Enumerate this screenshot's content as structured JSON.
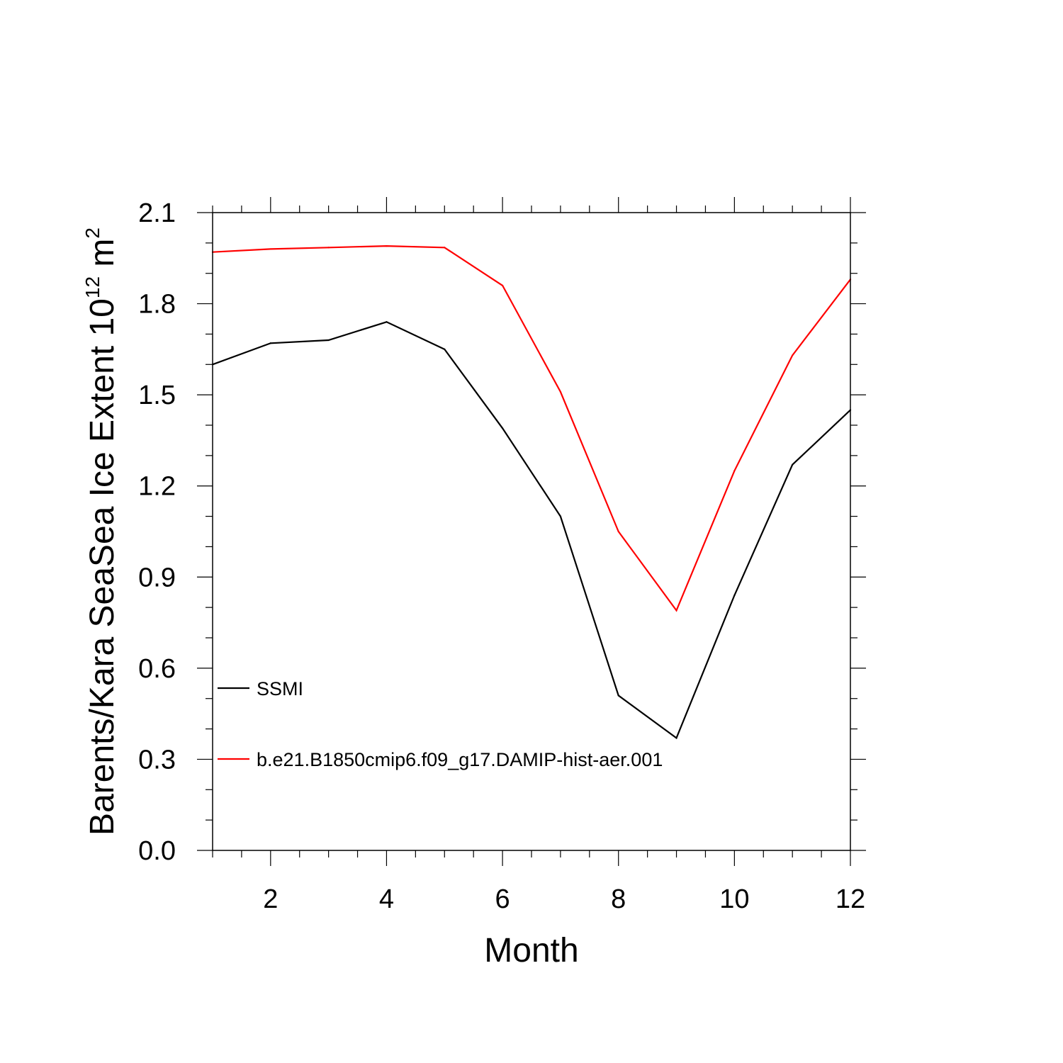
{
  "chart_data": {
    "type": "line",
    "title": "",
    "xlabel": "Month",
    "ylabel_main": "Barents/Kara SeaSea Ice Extent 10",
    "ylabel_exponent": "12",
    "ylabel_unit": " m",
    "ylabel_unit_exponent": "2",
    "xlim": [
      1,
      12
    ],
    "ylim": [
      0.0,
      2.1
    ],
    "x_ticks": [
      2,
      4,
      6,
      8,
      10,
      12
    ],
    "x_tick_labels": [
      "2",
      "4",
      "6",
      "8",
      "10",
      "12"
    ],
    "y_ticks": [
      0.0,
      0.3,
      0.6,
      0.9,
      1.2,
      1.5,
      1.8,
      2.1
    ],
    "y_tick_labels": [
      "0.0",
      "0.3",
      "0.6",
      "0.9",
      "1.2",
      "1.5",
      "1.8",
      "2.1"
    ],
    "grid": false,
    "legend_position": "lower-left",
    "x": [
      1,
      2,
      3,
      4,
      5,
      6,
      7,
      8,
      9,
      10,
      11,
      12
    ],
    "series": [
      {
        "name": "SSMI",
        "color": "#000000",
        "values": [
          1.6,
          1.67,
          1.68,
          1.74,
          1.65,
          1.39,
          1.1,
          0.51,
          0.37,
          0.84,
          1.27,
          1.45
        ]
      },
      {
        "name": "b.e21.B1850cmip6.f09_g17.DAMIP-hist-aer.001",
        "color": "#ff0000",
        "values": [
          1.97,
          1.98,
          1.985,
          1.99,
          1.985,
          1.86,
          1.51,
          1.05,
          0.79,
          1.25,
          1.63,
          1.88
        ]
      }
    ]
  }
}
